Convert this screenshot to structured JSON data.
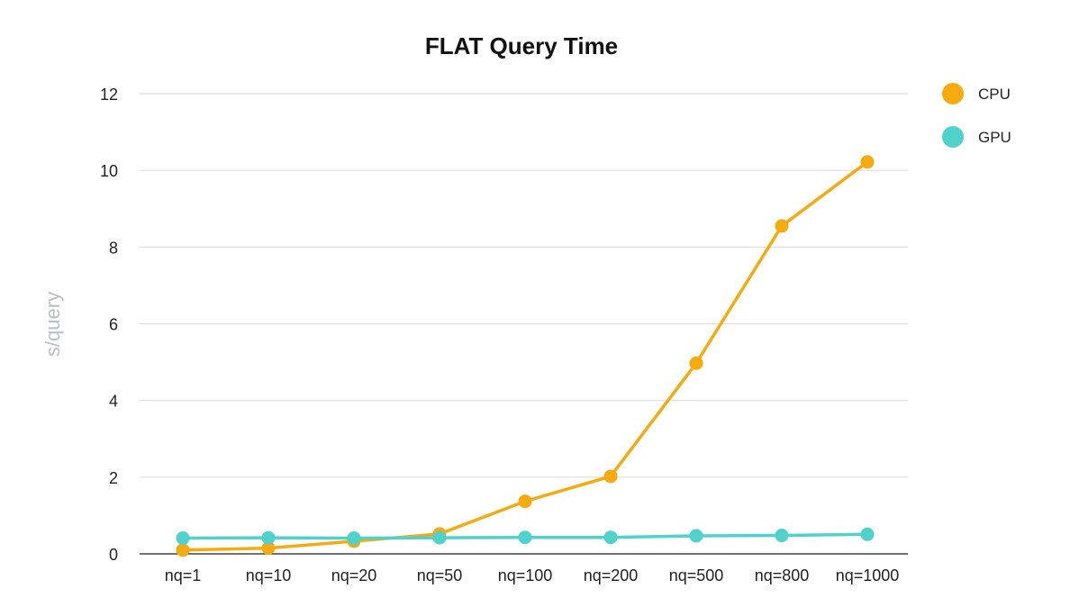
{
  "chart_data": {
    "type": "line",
    "title": "FLAT Query Time",
    "xlabel": "",
    "ylabel": "s/query",
    "categories": [
      "nq=1",
      "nq=10",
      "nq=20",
      "nq=50",
      "nq=100",
      "nq=200",
      "nq=500",
      "nq=800",
      "nq=1000"
    ],
    "ylim": [
      0,
      12
    ],
    "yticks": [
      0,
      2,
      4,
      6,
      8,
      10,
      12
    ],
    "grid": true,
    "legend": "right",
    "series": [
      {
        "name": "CPU",
        "color": "#f5ab0f",
        "values": [
          0.1,
          0.15,
          0.33,
          0.52,
          1.37,
          2.02,
          4.97,
          8.55,
          10.22
        ]
      },
      {
        "name": "GPU",
        "color": "#4fd1cc",
        "values": [
          0.41,
          0.42,
          0.41,
          0.42,
          0.43,
          0.43,
          0.47,
          0.48,
          0.51
        ]
      }
    ]
  }
}
